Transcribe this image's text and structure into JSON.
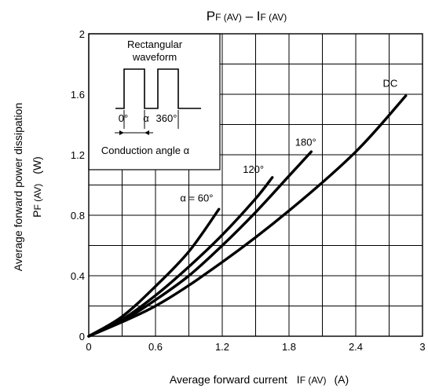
{
  "chart_data": {
    "type": "line",
    "title": {
      "main1": "P",
      "sub1": "F (AV)",
      "sep": " – ",
      "main2": "I",
      "sub2": "F (AV)"
    },
    "xlabel": {
      "text": "Average forward current",
      "symbol": "I",
      "sub": "F (AV)",
      "unit": "(A)"
    },
    "ylabel": {
      "line1": "Average forward power dissipation",
      "symbol": "P",
      "sub": "F (AV)",
      "unit": "(W)"
    },
    "xlim": [
      0,
      3
    ],
    "ylim": [
      0,
      2
    ],
    "x_ticks": [
      "0",
      "0.6",
      "1.2",
      "1.8",
      "2.4",
      "3"
    ],
    "y_ticks": [
      "0",
      "0.4",
      "0.8",
      "1.2",
      "1.6",
      "2"
    ],
    "grid": true,
    "minor_grid": {
      "x_step": 0.3,
      "y_step": 0.2
    },
    "series": [
      {
        "name": "α = 60°",
        "label_x": 0.97,
        "label_y": 0.89,
        "points": [
          [
            0,
            0
          ],
          [
            0.3,
            0.13
          ],
          [
            0.6,
            0.33
          ],
          [
            0.9,
            0.56
          ],
          [
            1.17,
            0.84
          ]
        ]
      },
      {
        "name": "120°",
        "label_x": 1.48,
        "label_y": 1.08,
        "points": [
          [
            0,
            0
          ],
          [
            0.3,
            0.11
          ],
          [
            0.6,
            0.27
          ],
          [
            0.9,
            0.46
          ],
          [
            1.2,
            0.67
          ],
          [
            1.5,
            0.91
          ],
          [
            1.65,
            1.05
          ]
        ]
      },
      {
        "name": "180°",
        "label_x": 1.95,
        "label_y": 1.26,
        "points": [
          [
            0,
            0
          ],
          [
            0.3,
            0.1
          ],
          [
            0.6,
            0.24
          ],
          [
            0.9,
            0.4
          ],
          [
            1.2,
            0.6
          ],
          [
            1.5,
            0.82
          ],
          [
            1.8,
            1.06
          ],
          [
            2.0,
            1.22
          ]
        ]
      },
      {
        "name": "DC",
        "label_x": 2.71,
        "label_y": 1.65,
        "points": [
          [
            0,
            0
          ],
          [
            0.6,
            0.2
          ],
          [
            1.2,
            0.49
          ],
          [
            1.8,
            0.83
          ],
          [
            2.4,
            1.22
          ],
          [
            2.85,
            1.59
          ]
        ]
      }
    ],
    "inset": {
      "title1": "Rectangular",
      "title2": "waveform",
      "label_0": "0°",
      "label_alpha": "α",
      "label_360": "360°",
      "caption": "Conduction angle α"
    }
  }
}
